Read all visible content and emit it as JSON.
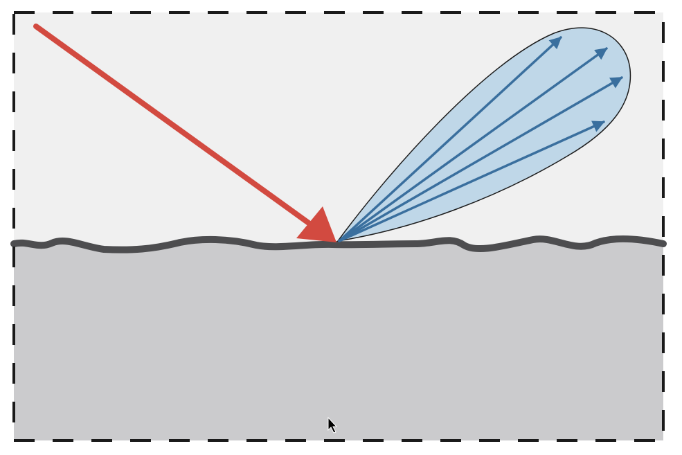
{
  "diagram": {
    "colors": {
      "page_background": "#ffffff",
      "air_background": "#f0f0f0",
      "material_fill": "#cbcbcd",
      "surface_line": "#4d4d4f",
      "incident_ray": "#d24a40",
      "lobe_fill": "#bfd7e8",
      "lobe_outline": "#1c1c1c",
      "reflected_rays": "#3a6f9e",
      "frame_dashes": "#1a1a1a"
    },
    "elements": {
      "frame": "dashed-border",
      "upper_region": "air",
      "lower_region": "rough-surface-material",
      "incident": "single-incident-light-ray",
      "reflection": "specular-reflection-lobe",
      "reflected_ray_count": 4
    },
    "cursor_icon": "mouse-pointer"
  }
}
